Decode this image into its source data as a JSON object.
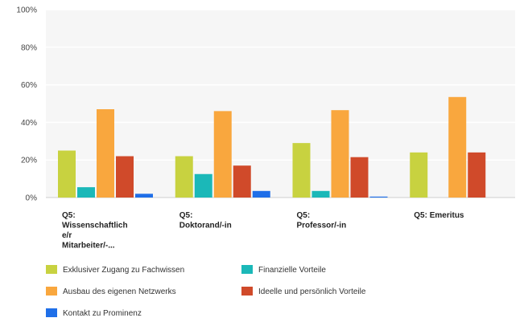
{
  "chart_data": {
    "type": "bar",
    "title": "",
    "xlabel": "",
    "ylabel": "",
    "ylim": [
      0,
      100
    ],
    "yticks": [
      "0%",
      "20%",
      "40%",
      "60%",
      "80%",
      "100%"
    ],
    "grid": true,
    "legend_position": "bottom",
    "categories": [
      [
        "Q5:",
        "Wissenschaftlich",
        "e/r",
        "Mitarbeiter/-..."
      ],
      [
        "Q5:",
        "Doktorand/-in"
      ],
      [
        "Q5:",
        "Professor/-in"
      ],
      [
        "Q5: Emeritus"
      ]
    ],
    "series": [
      {
        "name": "Exklusiver Zugang zu Fachwissen",
        "color": "#c8d240",
        "values": [
          25,
          22,
          29,
          24
        ]
      },
      {
        "name": "Finanzielle Vorteile",
        "color": "#1bb8b8",
        "values": [
          5.5,
          12.5,
          3.5,
          0
        ]
      },
      {
        "name": "Ausbau des eigenen Netzwerks",
        "color": "#f9a73e",
        "values": [
          47,
          46,
          46.5,
          53.5
        ]
      },
      {
        "name": "Ideelle und persönlich Vorteile",
        "color": "#d04a2a",
        "values": [
          22,
          17,
          21.5,
          24
        ]
      },
      {
        "name": "Kontakt zu Prominenz",
        "color": "#1f6fe8",
        "values": [
          2,
          3.5,
          0.5,
          0
        ]
      }
    ]
  }
}
